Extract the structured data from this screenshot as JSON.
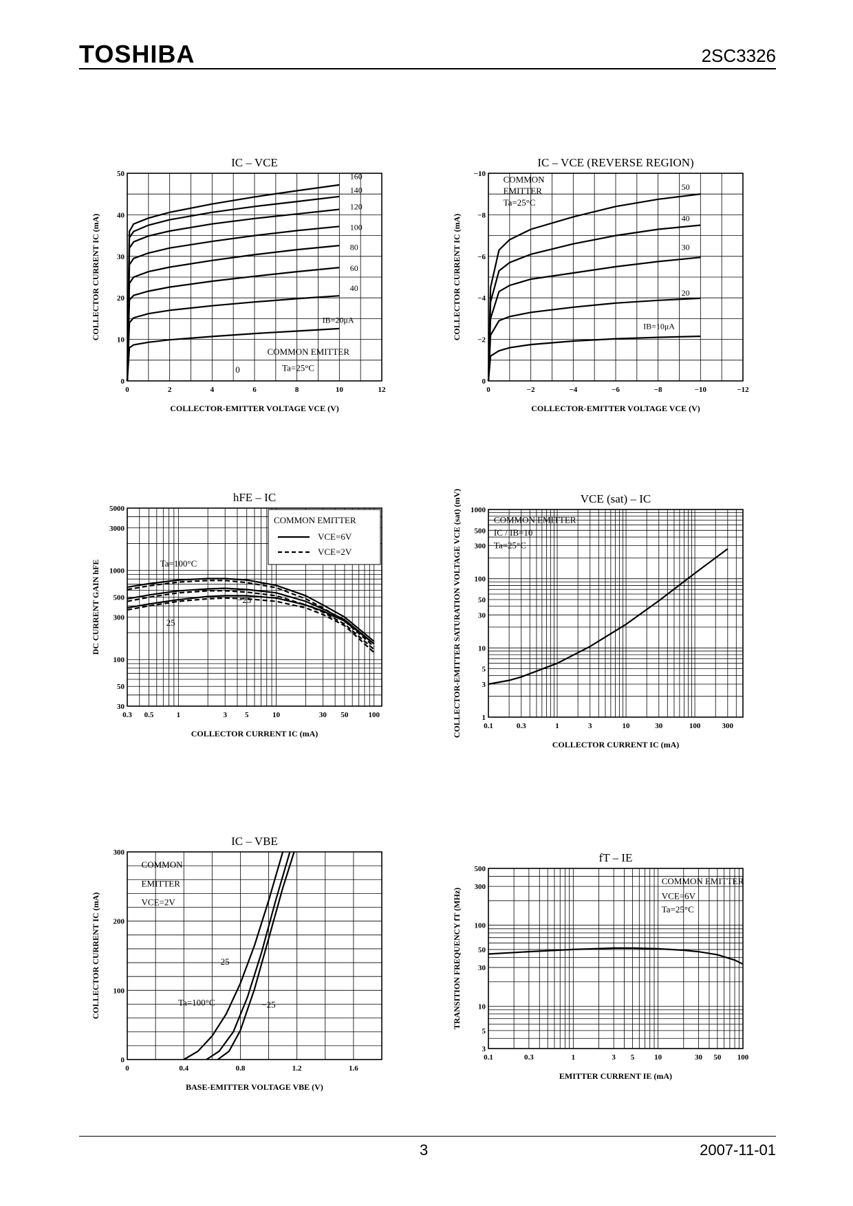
{
  "header": {
    "brand": "TOSHIBA",
    "part_number": "2SC3326"
  },
  "footer": {
    "page_number": "3",
    "date": "2007-11-01"
  },
  "chart_data": [
    {
      "id": "ic-vce",
      "type": "line",
      "title": "IC – VCE",
      "xlabel": "COLLECTOR-EMITTER VOLTAGE  VCE  (V)",
      "ylabel": "COLLECTOR CURRENT  IC  (mA)",
      "xscale": "linear",
      "yscale": "linear",
      "xlim": [
        0,
        12
      ],
      "ylim": [
        0,
        50
      ],
      "xticks": [
        0,
        2,
        4,
        6,
        8,
        10,
        12
      ],
      "xtick_labels": [
        "0",
        "2",
        "4",
        "6",
        "8",
        "10",
        "12"
      ],
      "yticks": [
        0,
        10,
        20,
        30,
        40,
        50
      ],
      "ytick_labels": [
        "0",
        "10",
        "20",
        "30",
        "40",
        "50"
      ],
      "grid": true,
      "annotations": [
        {
          "text": "COMMON EMITTER",
          "x": 6.6,
          "y": 6.3
        },
        {
          "text": "Ta=25°C",
          "x": 7.3,
          "y": 2.4
        },
        {
          "text": "0",
          "x": 5.1,
          "y": 2.0
        }
      ],
      "series": [
        {
          "name": "IB=20μA",
          "label": "IB=20μA",
          "lx": 9.2,
          "ly": 14.0,
          "x": [
            0,
            0.1,
            0.3,
            1,
            2,
            4,
            6,
            8,
            10
          ],
          "y": [
            0,
            8.0,
            8.7,
            9.3,
            9.9,
            10.7,
            11.4,
            12.0,
            12.6
          ]
        },
        {
          "name": "40",
          "label": "40",
          "lx": 10.5,
          "ly": 21.7,
          "x": [
            0,
            0.1,
            0.3,
            1,
            2,
            4,
            6,
            8,
            10
          ],
          "y": [
            0,
            14.0,
            15.2,
            16.2,
            17.0,
            18.1,
            19.0,
            19.8,
            20.5
          ]
        },
        {
          "name": "60",
          "label": "60",
          "lx": 10.5,
          "ly": 26.5,
          "x": [
            0,
            0.1,
            0.3,
            1,
            2,
            4,
            6,
            8,
            10
          ],
          "y": [
            0,
            19.5,
            20.6,
            21.6,
            22.6,
            24.0,
            25.2,
            26.3,
            27.3
          ]
        },
        {
          "name": "80",
          "label": "80",
          "lx": 10.5,
          "ly": 31.5,
          "x": [
            0,
            0.1,
            0.3,
            1,
            2,
            4,
            6,
            8,
            10
          ],
          "y": [
            0,
            23.5,
            25.0,
            26.3,
            27.4,
            29.0,
            30.4,
            31.6,
            32.6
          ]
        },
        {
          "name": "100",
          "label": "100",
          "lx": 10.5,
          "ly": 36.3,
          "x": [
            0,
            0.1,
            0.3,
            1,
            2,
            4,
            6,
            8,
            10
          ],
          "y": [
            0,
            28.0,
            29.5,
            30.8,
            32.0,
            33.6,
            35.0,
            36.2,
            37.2
          ]
        },
        {
          "name": "120",
          "label": "120",
          "lx": 10.5,
          "ly": 41.3,
          "x": [
            0,
            0.1,
            0.3,
            1,
            2,
            4,
            6,
            8,
            10
          ],
          "y": [
            0,
            32.0,
            33.5,
            34.9,
            36.1,
            37.8,
            39.1,
            40.2,
            41.3
          ]
        },
        {
          "name": "140",
          "label": "140",
          "lx": 10.5,
          "ly": 45.3,
          "x": [
            0,
            0.1,
            0.3,
            1,
            2,
            4,
            6,
            8,
            10
          ],
          "y": [
            0,
            34.5,
            36.0,
            37.5,
            38.8,
            40.6,
            42.0,
            43.2,
            44.4
          ]
        },
        {
          "name": "160",
          "label": "160",
          "lx": 10.5,
          "ly": 48.6,
          "x": [
            0,
            0.1,
            0.3,
            1,
            2,
            4,
            6,
            8,
            10
          ],
          "y": [
            0,
            36.0,
            37.8,
            39.2,
            40.6,
            42.6,
            44.3,
            45.8,
            47.2
          ]
        }
      ]
    },
    {
      "id": "ic-vce-reverse",
      "type": "line",
      "title": "IC – VCE   (REVERSE REGION)",
      "xlabel": "COLLECTOR-EMITTER VOLTAGE  VCE  (V)",
      "ylabel": "COLLECTOR CURRENT  IC  (mA)",
      "xscale": "linear",
      "yscale": "linear",
      "xlim": [
        0,
        -12
      ],
      "ylim": [
        0,
        -10
      ],
      "xticks": [
        0,
        -2,
        -4,
        -6,
        -8,
        -10,
        -12
      ],
      "xtick_labels": [
        "0",
        "−2",
        "−4",
        "−6",
        "−8",
        "−10",
        "−12"
      ],
      "yticks": [
        0,
        -2,
        -4,
        -6,
        -8,
        -10
      ],
      "ytick_labels": [
        "0",
        "−2",
        "−4",
        "−6",
        "−8",
        "−10"
      ],
      "grid": true,
      "annotations": [
        {
          "text": "COMMON",
          "x": -0.7,
          "y": -9.55
        },
        {
          "text": "EMITTER",
          "x": -0.7,
          "y": -9.0
        },
        {
          "text": "Ta=25°C",
          "x": -0.7,
          "y": -8.45
        }
      ],
      "series": [
        {
          "name": "IB=10μA",
          "label": "IB=10μA",
          "lx": -7.3,
          "ly": -2.5,
          "x": [
            0,
            -0.1,
            -0.5,
            -1,
            -2,
            -4,
            -6,
            -8,
            -10
          ],
          "y": [
            0,
            -1.2,
            -1.45,
            -1.6,
            -1.75,
            -1.92,
            -2.03,
            -2.1,
            -2.15
          ]
        },
        {
          "name": "20",
          "label": "20",
          "lx": -9.1,
          "ly": -4.1,
          "x": [
            0,
            -0.1,
            -0.5,
            -1,
            -2,
            -4,
            -6,
            -8,
            -10
          ],
          "y": [
            0,
            -2.2,
            -2.9,
            -3.1,
            -3.3,
            -3.55,
            -3.75,
            -3.88,
            -3.98
          ]
        },
        {
          "name": "30",
          "label": "30",
          "lx": -9.1,
          "ly": -6.3,
          "x": [
            0,
            -0.1,
            -0.5,
            -1,
            -2,
            -4,
            -6,
            -8,
            -10
          ],
          "y": [
            0,
            -3.0,
            -4.3,
            -4.6,
            -4.9,
            -5.2,
            -5.5,
            -5.75,
            -5.95
          ]
        },
        {
          "name": "40",
          "label": "40",
          "lx": -9.1,
          "ly": -7.7,
          "x": [
            0,
            -0.1,
            -0.5,
            -1,
            -2,
            -4,
            -6,
            -8,
            -10
          ],
          "y": [
            0,
            -3.8,
            -5.3,
            -5.7,
            -6.1,
            -6.6,
            -7.0,
            -7.3,
            -7.5
          ]
        },
        {
          "name": "50",
          "label": "50",
          "lx": -9.1,
          "ly": -9.2,
          "x": [
            0,
            -0.1,
            -0.5,
            -1,
            -2,
            -4,
            -6,
            -8,
            -10
          ],
          "y": [
            0,
            -4.5,
            -6.3,
            -6.8,
            -7.3,
            -7.9,
            -8.4,
            -8.75,
            -9.0
          ]
        }
      ]
    },
    {
      "id": "hfe-ic",
      "type": "line",
      "title": "hFE – IC",
      "xlabel": "COLLECTOR CURRENT  IC  (mA)",
      "ylabel": "DC CURRENT GAIN  hFE",
      "xscale": "log",
      "yscale": "log",
      "xlim": [
        0.3,
        120
      ],
      "ylim": [
        30,
        5000
      ],
      "xticks": [
        0.3,
        0.5,
        1,
        3,
        5,
        10,
        30,
        50,
        100
      ],
      "xtick_labels": [
        "0.3",
        "0.5",
        "1",
        "3",
        "5",
        "10",
        "30",
        "50",
        "100"
      ],
      "yticks": [
        30,
        50,
        100,
        300,
        500,
        1000,
        3000,
        5000
      ],
      "ytick_labels": [
        "30",
        "50",
        "100",
        "300",
        "500",
        "1000",
        "3000",
        "5000"
      ],
      "grid": true,
      "legend": {
        "placement": "top-right",
        "title": "COMMON EMITTER",
        "entries": [
          {
            "label": "VCE=6V",
            "style": "solid"
          },
          {
            "label": "VCE=2V",
            "style": "dashed"
          }
        ]
      },
      "annotations": [
        {
          "text": "Ta=100°C",
          "x": 0.65,
          "y": 1100
        },
        {
          "text": "−25",
          "x": 4.0,
          "y": 430
        },
        {
          "text": "25",
          "x": 0.75,
          "y": 240
        }
      ],
      "series": [
        {
          "name": "Ta=100°C VCE=6V",
          "style": "solid",
          "x": [
            0.3,
            0.5,
            1,
            2,
            3,
            5,
            10,
            20,
            30,
            50,
            100
          ],
          "y": [
            650,
            710,
            780,
            810,
            810,
            780,
            680,
            520,
            410,
            300,
            160
          ]
        },
        {
          "name": "Ta=100°C VCE=2V",
          "style": "dashed",
          "x": [
            0.3,
            0.5,
            1,
            2,
            3,
            5,
            10,
            20,
            30,
            50,
            100
          ],
          "y": [
            610,
            670,
            740,
            770,
            770,
            730,
            640,
            480,
            380,
            270,
            140
          ]
        },
        {
          "name": "Ta=25°C VCE=6V",
          "style": "solid",
          "x": [
            0.3,
            0.5,
            1,
            2,
            3,
            5,
            10,
            20,
            30,
            50,
            100
          ],
          "y": [
            480,
            530,
            590,
            620,
            630,
            610,
            560,
            450,
            370,
            280,
            150
          ]
        },
        {
          "name": "Ta=25°C VCE=2V",
          "style": "dashed",
          "x": [
            0.3,
            0.5,
            1,
            2,
            3,
            5,
            10,
            20,
            30,
            50,
            100
          ],
          "y": [
            450,
            500,
            560,
            590,
            590,
            570,
            520,
            410,
            340,
            250,
            130
          ]
        },
        {
          "name": "Ta=-25°C VCE=6V",
          "style": "solid",
          "x": [
            0.3,
            0.5,
            1,
            2,
            3,
            5,
            10,
            20,
            30,
            50,
            100
          ],
          "y": [
            380,
            420,
            470,
            510,
            520,
            520,
            490,
            410,
            350,
            270,
            150
          ]
        },
        {
          "name": "Ta=-25°C VCE=2V",
          "style": "dashed",
          "x": [
            0.3,
            0.5,
            1,
            2,
            3,
            5,
            10,
            20,
            30,
            50,
            100
          ],
          "y": [
            360,
            400,
            450,
            480,
            490,
            480,
            450,
            380,
            320,
            240,
            120
          ]
        }
      ]
    },
    {
      "id": "vcesat-ic",
      "type": "line",
      "title": "VCE (sat) – IC",
      "xlabel": "COLLECTOR CURRENT  IC  (mA)",
      "ylabel": "COLLECTOR-EMITTER SATURATION VOLTAGE  VCE (sat)  (mV)",
      "xscale": "log",
      "yscale": "log",
      "xlim": [
        0.1,
        500
      ],
      "ylim": [
        1,
        1000
      ],
      "xticks": [
        0.1,
        0.3,
        1,
        3,
        10,
        30,
        100,
        300
      ],
      "xtick_labels": [
        "0.1",
        "0.3",
        "1",
        "3",
        "10",
        "30",
        "100",
        "300"
      ],
      "yticks": [
        1,
        3,
        5,
        10,
        30,
        50,
        100,
        300,
        500,
        1000
      ],
      "ytick_labels": [
        "1",
        "3",
        "5",
        "10",
        "30",
        "50",
        "100",
        "300",
        "500",
        "1000"
      ],
      "grid": true,
      "annotations": [
        {
          "text": "COMMON EMITTER",
          "x": 0.12,
          "y": 640
        },
        {
          "text": "IC / IB=10",
          "x": 0.12,
          "y": 420
        },
        {
          "text": "Ta=25°C",
          "x": 0.12,
          "y": 275
        }
      ],
      "series": [
        {
          "name": "IC/IB=10",
          "x": [
            0.1,
            0.2,
            0.3,
            1,
            3,
            10,
            30,
            100,
            300
          ],
          "y": [
            3.0,
            3.4,
            3.8,
            6.0,
            10.5,
            22,
            48,
            120,
            270
          ]
        }
      ]
    },
    {
      "id": "ic-vbe",
      "type": "line",
      "title": "IC – VBE",
      "xlabel": "BASE-EMITTER VOLTAGE  VBE  (V)",
      "ylabel": "COLLECTOR CURRENT  IC  (mA)",
      "xscale": "linear",
      "yscale": "linear",
      "xlim": [
        0,
        1.8
      ],
      "ylim": [
        0,
        300
      ],
      "xticks": [
        0,
        0.4,
        0.8,
        1.2,
        1.6
      ],
      "xtick_labels": [
        "0",
        "0.4",
        "0.8",
        "1.2",
        "1.6"
      ],
      "yticks": [
        0,
        100,
        200,
        300
      ],
      "ytick_labels": [
        "0",
        "100",
        "200",
        "300"
      ],
      "grid": true,
      "annotations": [
        {
          "text": "COMMON",
          "x": 0.1,
          "y": 277
        },
        {
          "text": "EMITTER",
          "x": 0.1,
          "y": 250
        },
        {
          "text": "VCE=2V",
          "x": 0.1,
          "y": 223
        },
        {
          "text": "Ta=100°C",
          "x": 0.36,
          "y": 78
        },
        {
          "text": "25",
          "x": 0.66,
          "y": 137
        },
        {
          "text": "−25",
          "x": 0.95,
          "y": 75
        }
      ],
      "series": [
        {
          "name": "Ta=100°C",
          "x": [
            0.4,
            0.5,
            0.6,
            0.7,
            0.8,
            0.9,
            1.0,
            1.1
          ],
          "y": [
            0,
            12,
            34,
            66,
            110,
            165,
            230,
            300
          ]
        },
        {
          "name": "Ta=25°C",
          "x": [
            0.56,
            0.65,
            0.75,
            0.85,
            0.95,
            1.05,
            1.15
          ],
          "y": [
            0,
            12,
            40,
            90,
            155,
            230,
            300
          ]
        },
        {
          "name": "Ta=-25°C",
          "x": [
            0.64,
            0.72,
            0.8,
            0.9,
            1.0,
            1.1,
            1.18
          ],
          "y": [
            0,
            12,
            42,
            102,
            175,
            248,
            300
          ]
        }
      ]
    },
    {
      "id": "ft-ie",
      "type": "line",
      "title": "fT – IE",
      "xlabel": "EMITTER CURRENT  IE  (mA)",
      "ylabel": "TRANSITION FREQUENCY  fT  (MHz)",
      "xscale": "log",
      "yscale": "log",
      "xlim": [
        0.1,
        100
      ],
      "ylim": [
        3,
        500
      ],
      "xticks": [
        0.1,
        0.3,
        1,
        3,
        5,
        10,
        30,
        50,
        100
      ],
      "xtick_labels": [
        "0.1",
        "0.3",
        "1",
        "3",
        "5",
        "10",
        "30",
        "50",
        "100"
      ],
      "yticks": [
        3,
        5,
        10,
        30,
        50,
        100,
        300,
        500
      ],
      "ytick_labels": [
        "3",
        "5",
        "10",
        "30",
        "50",
        "100",
        "300",
        "500"
      ],
      "grid": true,
      "annotations": [
        {
          "text": "COMMON EMITTER",
          "x": 11,
          "y": 320
        },
        {
          "text": "VCE=6V",
          "x": 11,
          "y": 210
        },
        {
          "text": "Ta=25°C",
          "x": 11,
          "y": 143
        }
      ],
      "series": [
        {
          "name": "VCE=6V",
          "x": [
            0.1,
            0.3,
            1,
            3,
            5,
            10,
            20,
            30,
            50,
            80,
            100
          ],
          "y": [
            44,
            47,
            50,
            52,
            52,
            51,
            49,
            47,
            43,
            37,
            33
          ]
        }
      ]
    }
  ]
}
